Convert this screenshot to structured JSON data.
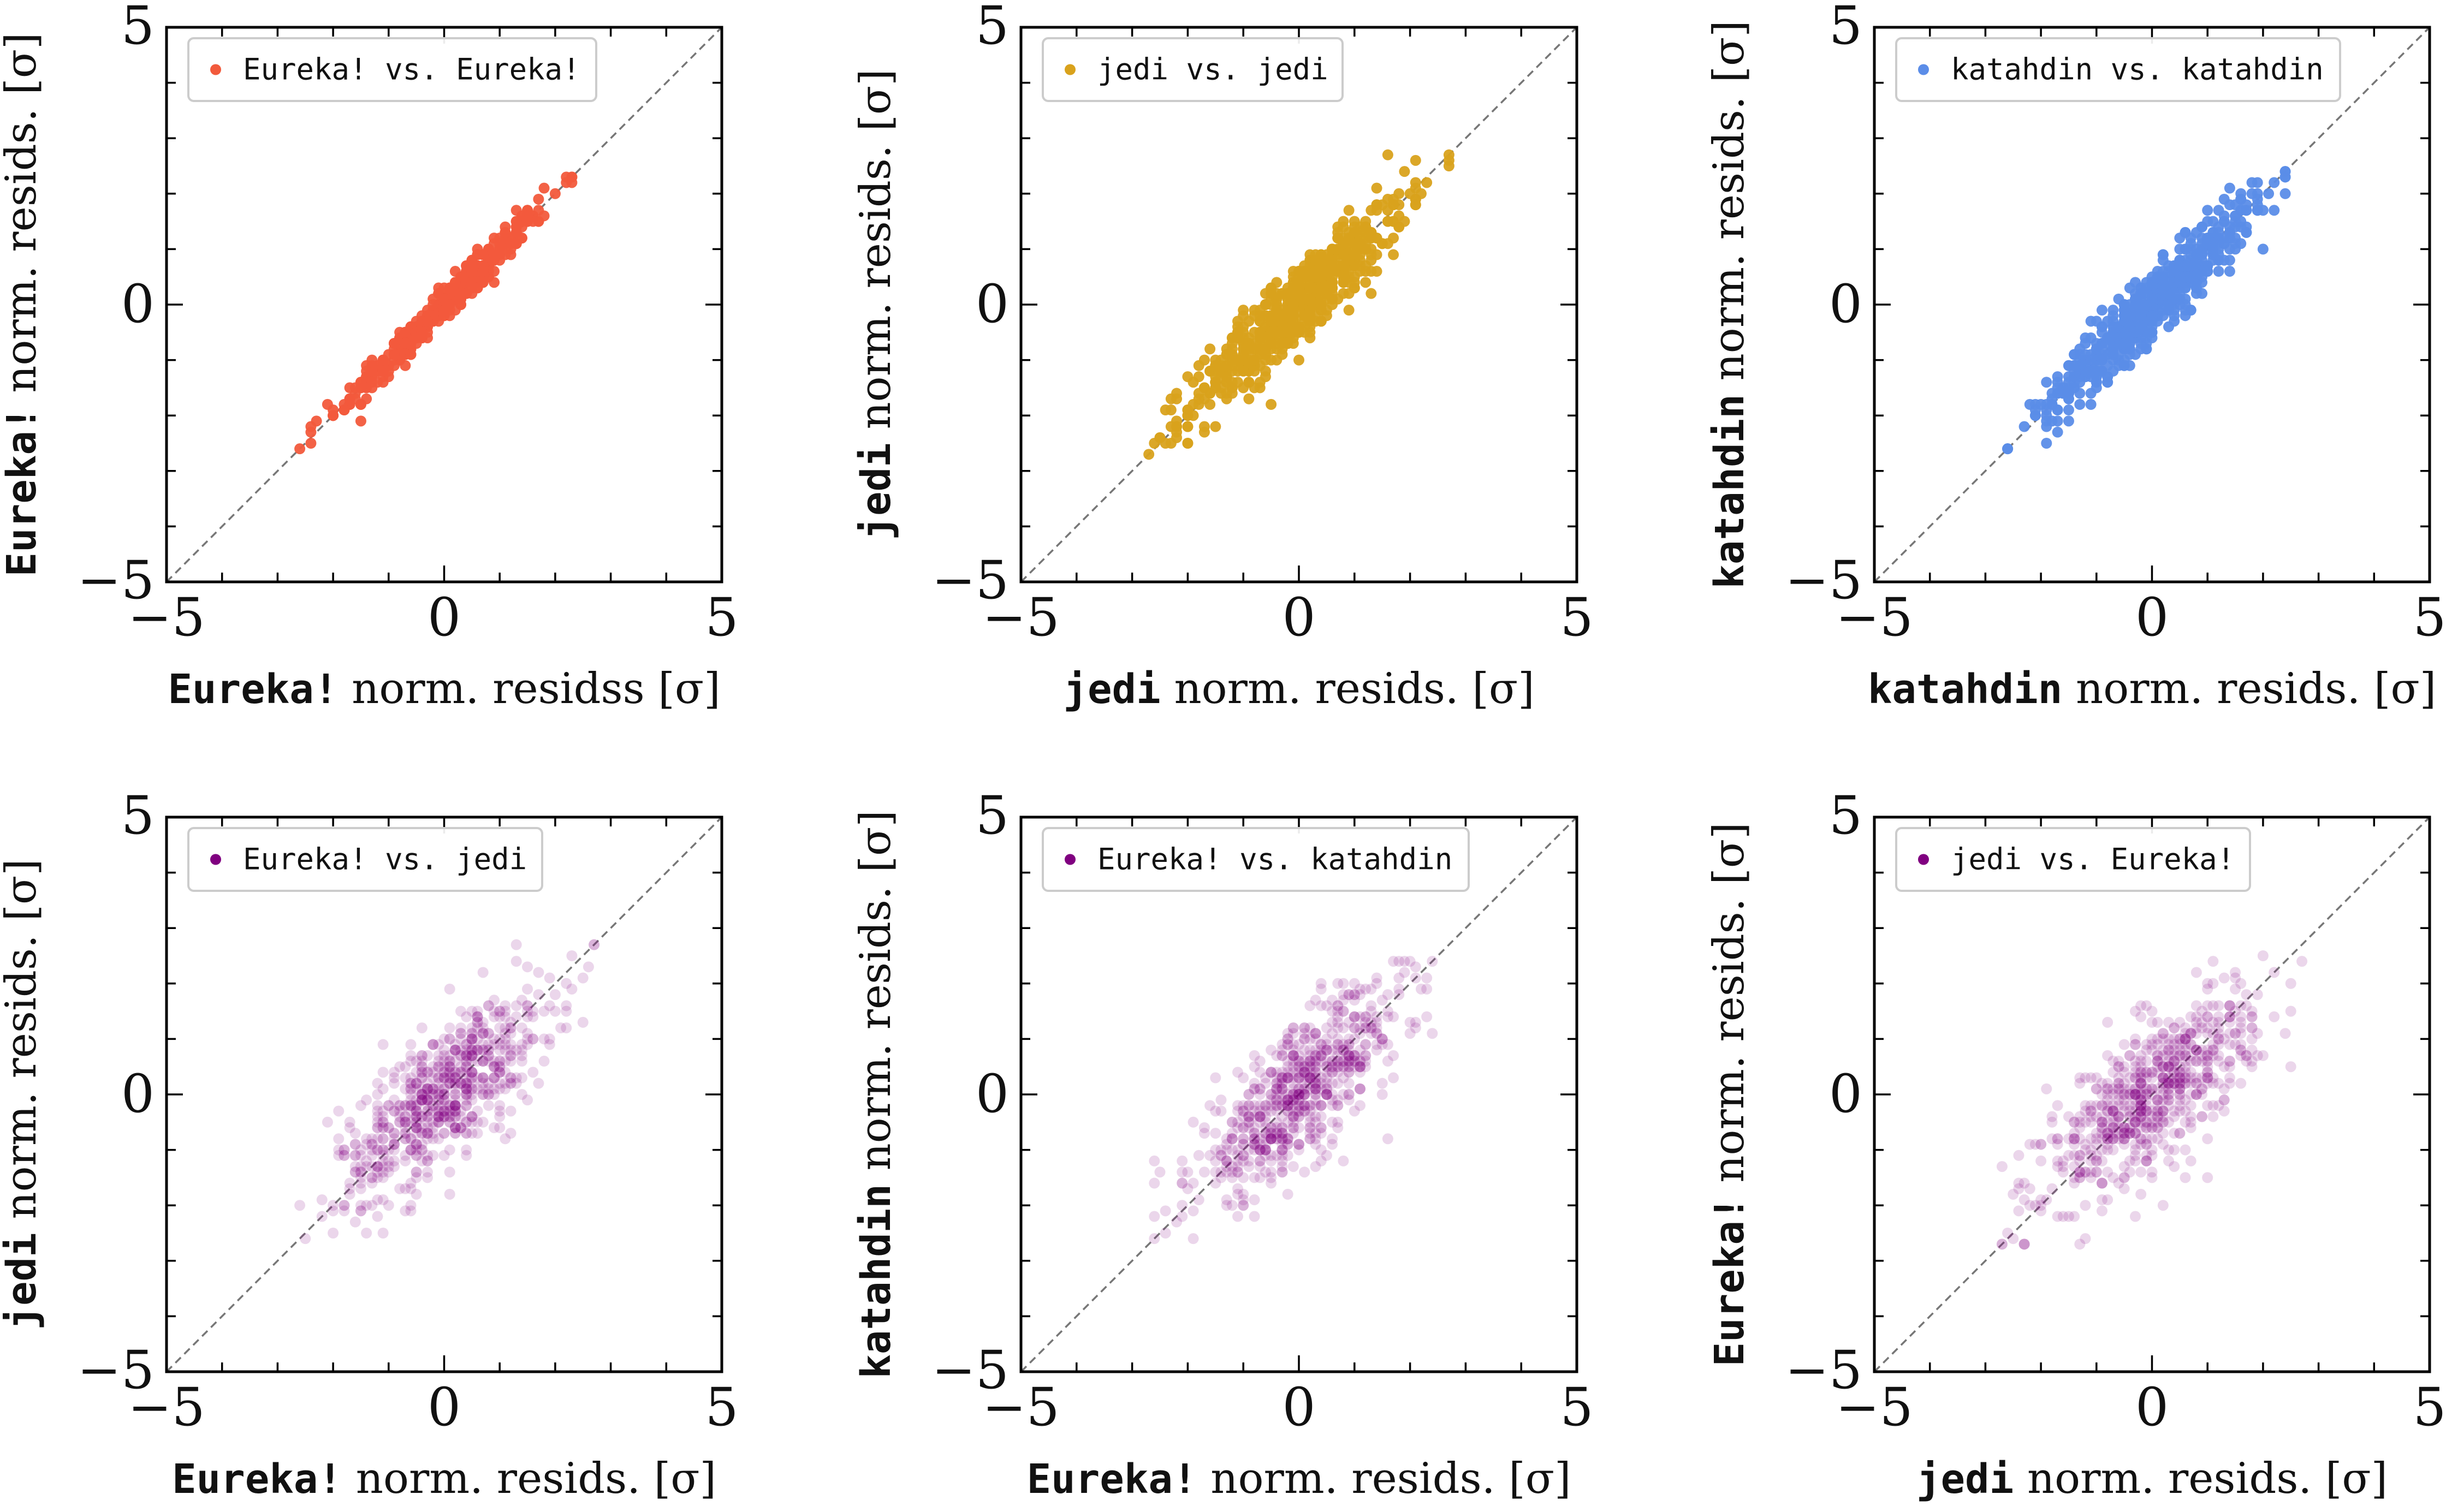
{
  "chart_data": [
    {
      "type": "scatter",
      "legend": "Eureka! vs. Eureka!",
      "color": "#f25a3c",
      "opacity": 0.95,
      "n_points": 420,
      "corr": 0.985,
      "xlabel_code": "Eureka!",
      "xlabel_text": " norm. residss [σ]",
      "ylabel_code": "Eureka!",
      "ylabel_text": " norm. resids. [σ]",
      "xlim": [
        -5,
        5
      ],
      "ylim": [
        -5,
        5
      ],
      "xticks": [
        "−5",
        "0",
        "5"
      ],
      "yticks": [
        "−5",
        "0",
        "5"
      ],
      "data_range": [
        -2.6,
        2.3
      ]
    },
    {
      "type": "scatter",
      "legend": "jedi vs. jedi",
      "color": "#d9a21c",
      "opacity": 0.95,
      "n_points": 700,
      "corr": 0.93,
      "xlabel_code": "jedi",
      "xlabel_text": " norm. resids. [σ]",
      "ylabel_code": "jedi",
      "ylabel_text": " norm. resids. [σ]",
      "xlim": [
        -5,
        5
      ],
      "ylim": [
        -5,
        5
      ],
      "xticks": [
        "−5",
        "0",
        "5"
      ],
      "yticks": [
        "−5",
        "0",
        "5"
      ],
      "data_range": [
        -2.7,
        2.7
      ]
    },
    {
      "type": "scatter",
      "legend": "katahdin vs. katahdin",
      "color": "#5b8de8",
      "opacity": 0.95,
      "n_points": 650,
      "corr": 0.95,
      "xlabel_code": "katahdin",
      "xlabel_text": " norm. resids. [σ]",
      "ylabel_code": "katahdin",
      "ylabel_text": " norm. resids. [σ]",
      "xlim": [
        -5,
        5
      ],
      "ylim": [
        -5,
        5
      ],
      "xticks": [
        "−5",
        "0",
        "5"
      ],
      "yticks": [
        "−5",
        "0",
        "5"
      ],
      "data_range": [
        -2.6,
        2.4
      ]
    },
    {
      "type": "scatter",
      "legend": "Eureka! vs. jedi",
      "color": "#800080",
      "opacity": 0.16,
      "n_points": 650,
      "corr": 0.75,
      "xlabel_code": "Eureka!",
      "xlabel_text": " norm. resids. [σ]",
      "ylabel_code": "jedi",
      "ylabel_text": " norm. resids. [σ]",
      "xlim": [
        -5,
        5
      ],
      "ylim": [
        -5,
        5
      ],
      "xticks": [
        "−5",
        "0",
        "5"
      ],
      "yticks": [
        "−5",
        "0",
        "5"
      ],
      "data_range": [
        -2.6,
        2.7
      ]
    },
    {
      "type": "scatter",
      "legend": "Eureka! vs. katahdin",
      "color": "#800080",
      "opacity": 0.16,
      "n_points": 650,
      "corr": 0.78,
      "xlabel_code": "Eureka!",
      "xlabel_text": " norm. resids. [σ]",
      "ylabel_code": "katahdin",
      "ylabel_text": " norm. resids. [σ]",
      "xlim": [
        -5,
        5
      ],
      "ylim": [
        -5,
        5
      ],
      "xticks": [
        "−5",
        "0",
        "5"
      ],
      "yticks": [
        "−5",
        "0",
        "5"
      ],
      "data_range": [
        -2.6,
        2.4
      ]
    },
    {
      "type": "scatter",
      "legend": "jedi vs. Eureka!",
      "color": "#800080",
      "opacity": 0.16,
      "n_points": 650,
      "corr": 0.75,
      "xlabel_code": "jedi",
      "xlabel_text": " norm. resids. [σ]",
      "ylabel_code": "Eureka!",
      "ylabel_text": " norm. resids. [σ]",
      "xlim": [
        -5,
        5
      ],
      "ylim": [
        -5,
        5
      ],
      "xticks": [
        "−5",
        "0",
        "5"
      ],
      "yticks": [
        "−5",
        "0",
        "5"
      ],
      "data_range": [
        -2.7,
        2.7
      ]
    }
  ]
}
